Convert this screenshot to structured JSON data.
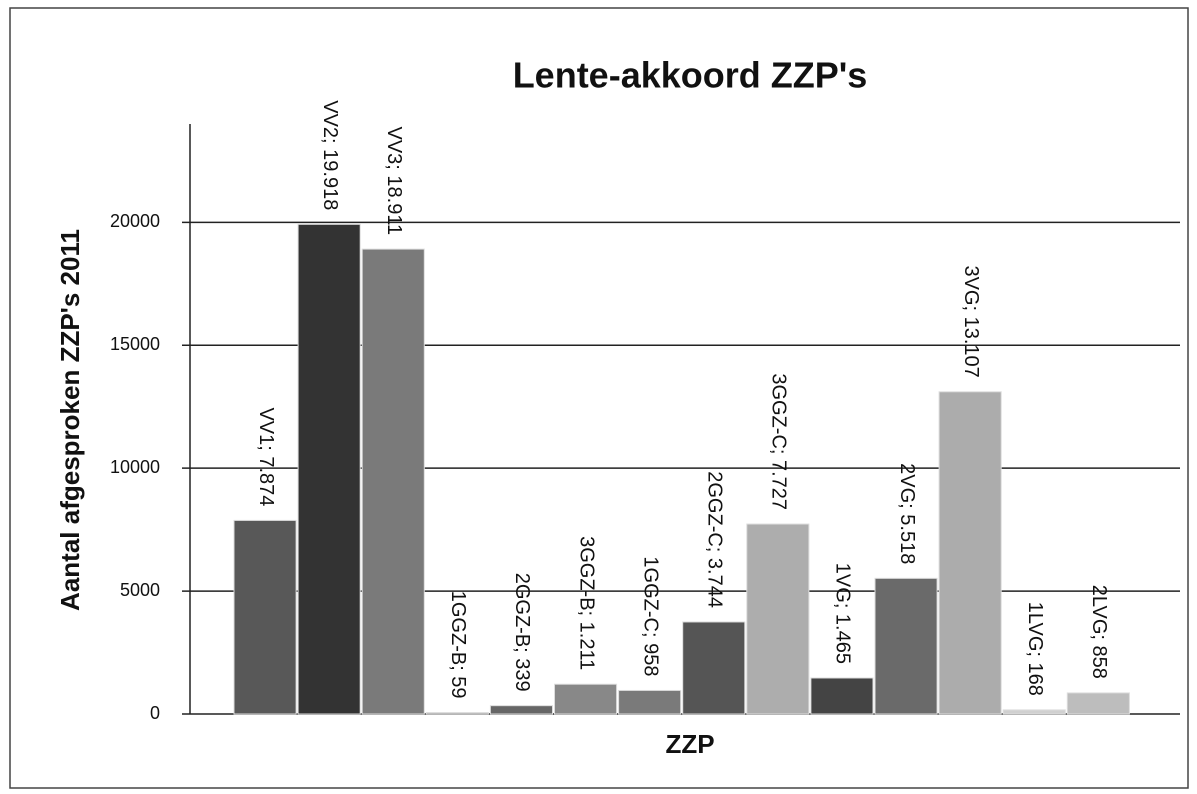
{
  "chart_data": {
    "type": "bar",
    "title": "Lente-akkoord ZZP's",
    "x_label": "ZZP",
    "y_label": "Aantal afgesproken ZZP's 2011",
    "values": [
      7874,
      19918,
      18911,
      59,
      339,
      1211,
      958,
      3744,
      7727,
      1465,
      5518,
      13107,
      168,
      858
    ],
    "value_labels": [
      "VV1; 7.874",
      "VV2; 19.918",
      "VV3; 18.911",
      "1GGZ-B; 59",
      "2GGZ-B; 339",
      "3GGZ-B; 1.211",
      "1GGZ-C; 958",
      "2GGZ-C; 3.744",
      "3GGZ-C; 7.727",
      "1VG; 1.465",
      "2VG; 5.518",
      "3VG; 13.107",
      "1LVG; 168",
      "2LVG; 858"
    ],
    "colors": [
      "#585858",
      "#333333",
      "#7a7a7a",
      "#999999",
      "#666666",
      "#888888",
      "#7a7a7a",
      "#555555",
      "#adadad",
      "#444444",
      "#6a6a6a",
      "#acacac",
      "#d0d0d0",
      "#bdbdbd"
    ],
    "ylim": [
      0,
      24000
    ],
    "yticks": [
      0,
      5000,
      10000,
      15000,
      20000
    ],
    "grid": true
  }
}
